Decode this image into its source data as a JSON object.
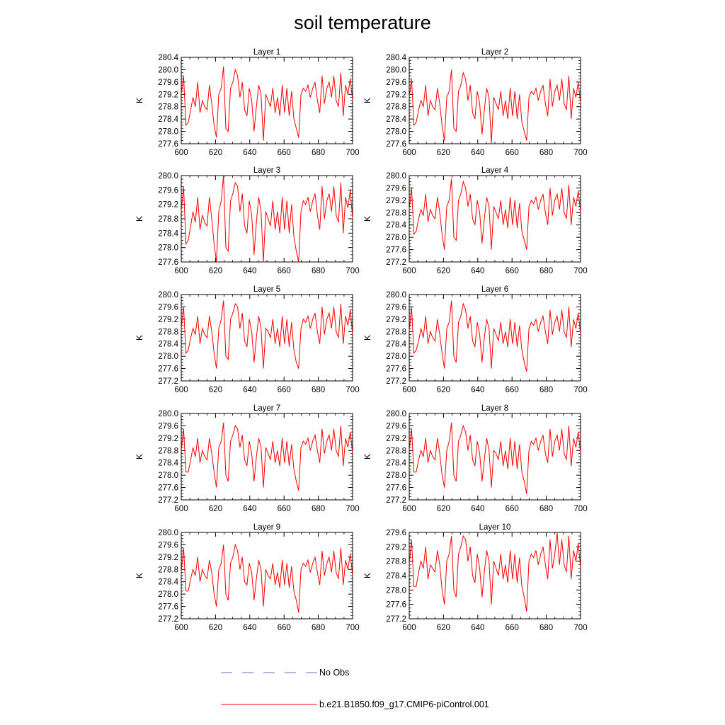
{
  "chart_data": {
    "type": "line",
    "title": "soil temperature",
    "xlim": [
      600,
      700
    ],
    "x_ticks": [
      "600",
      "620",
      "640",
      "660",
      "680",
      "700"
    ],
    "legend": [
      {
        "label": "No Obs",
        "color": "#6b6bbf",
        "style": "dashed"
      },
      {
        "label": "b.e21.B1850.f09_g17.CMIP6-piControl.001",
        "color": "#ff0000",
        "style": "solid"
      }
    ],
    "panels": [
      {
        "title": "Layer 1",
        "ylabel": "K",
        "ylim": [
          277.6,
          280.4
        ],
        "y_ticks": [
          "277.6",
          "278.0",
          "278.4",
          "278.8",
          "279.2",
          "279.6",
          "280.0",
          "280.4"
        ],
        "values": [
          279.2,
          279.8,
          278.2,
          278.3,
          278.7,
          279.1,
          278.8,
          279.6,
          278.6,
          279.0,
          278.8,
          278.7,
          279.5,
          278.9,
          278.2,
          277.8,
          279.2,
          279.4,
          280.1,
          278.1,
          278.0,
          279.4,
          279.6,
          280.0,
          279.8,
          279.1,
          279.6,
          278.7,
          278.5,
          279.4,
          279.0,
          278.0,
          278.8,
          279.5,
          279.2,
          277.7,
          279.2,
          279.0,
          278.8,
          279.4,
          278.6,
          279.1,
          278.5,
          279.5,
          278.6,
          279.4,
          278.5,
          279.3,
          278.4,
          278.1,
          277.8,
          279.2,
          279.4,
          279.3,
          279.5,
          279.1,
          279.4,
          279.6,
          279.0,
          278.6,
          279.8,
          278.9,
          279.4,
          279.6,
          279.1,
          279.8,
          279.0,
          278.8,
          279.9,
          278.5,
          279.5,
          279.2,
          279.7,
          279.0
        ],
        "x0": 600,
        "dx": 1.37
      },
      {
        "title": "Layer 2",
        "ylabel": "K",
        "ylim": [
          277.6,
          280.4
        ],
        "y_ticks": [
          "277.6",
          "278.0",
          "278.4",
          "278.8",
          "279.2",
          "279.6",
          "280.0",
          "280.4"
        ],
        "values": [
          279.1,
          279.7,
          278.2,
          278.3,
          278.7,
          279.0,
          278.8,
          279.5,
          278.5,
          279.0,
          278.8,
          278.7,
          279.4,
          278.9,
          278.2,
          277.7,
          279.1,
          279.3,
          280.0,
          278.1,
          278.0,
          279.3,
          279.5,
          279.9,
          279.7,
          279.0,
          279.5,
          278.6,
          278.4,
          279.3,
          278.9,
          277.9,
          278.7,
          279.4,
          279.1,
          277.6,
          279.1,
          278.9,
          278.7,
          279.3,
          278.5,
          279.0,
          278.4,
          279.4,
          278.5,
          279.3,
          278.4,
          279.2,
          278.3,
          278.0,
          277.7,
          279.1,
          279.3,
          279.2,
          279.4,
          279.0,
          279.3,
          279.5,
          278.9,
          278.5,
          279.7,
          278.8,
          279.3,
          279.5,
          279.0,
          279.7,
          278.9,
          278.7,
          279.8,
          278.4,
          279.4,
          279.1,
          279.6,
          278.9
        ],
        "x0": 600,
        "dx": 1.37
      },
      {
        "title": "Layer 3",
        "ylabel": "K",
        "ylim": [
          277.6,
          280.0
        ],
        "y_ticks": [
          "277.6",
          "278.0",
          "278.4",
          "278.8",
          "279.2",
          "279.6",
          "280.0"
        ],
        "values": [
          279.0,
          279.7,
          278.1,
          278.2,
          278.6,
          279.0,
          278.7,
          279.4,
          278.5,
          278.9,
          278.7,
          278.6,
          279.4,
          278.8,
          278.1,
          277.6,
          279.0,
          279.3,
          280.0,
          278.0,
          277.9,
          279.3,
          279.5,
          279.8,
          279.7,
          279.0,
          279.5,
          278.6,
          278.4,
          279.3,
          278.9,
          277.8,
          278.7,
          279.4,
          279.0,
          277.6,
          279.0,
          278.8,
          278.6,
          279.3,
          278.5,
          279.0,
          278.4,
          279.4,
          278.5,
          279.3,
          278.4,
          279.2,
          278.3,
          277.9,
          277.6,
          279.0,
          279.3,
          279.2,
          279.4,
          279.0,
          279.3,
          279.5,
          278.9,
          278.5,
          279.7,
          278.8,
          279.3,
          279.5,
          279.0,
          279.7,
          278.9,
          278.7,
          279.8,
          278.4,
          279.4,
          279.1,
          279.6,
          278.8
        ],
        "x0": 600,
        "dx": 1.37
      },
      {
        "title": "Layer 4",
        "ylabel": "K",
        "ylim": [
          277.2,
          280.0
        ],
        "y_ticks": [
          "277.2",
          "277.6",
          "278.0",
          "278.4",
          "278.8",
          "279.2",
          "279.6",
          "280.0"
        ],
        "values": [
          278.9,
          279.6,
          278.1,
          278.2,
          278.6,
          278.9,
          278.7,
          279.4,
          278.5,
          278.9,
          278.7,
          278.6,
          279.3,
          278.8,
          278.1,
          277.6,
          279.0,
          279.2,
          279.9,
          278.0,
          277.9,
          279.2,
          279.4,
          279.8,
          279.6,
          279.0,
          279.4,
          278.6,
          278.4,
          279.2,
          278.8,
          277.8,
          278.6,
          279.3,
          279.0,
          277.6,
          279.0,
          278.8,
          278.6,
          279.2,
          278.4,
          278.9,
          278.3,
          279.3,
          278.4,
          279.2,
          278.3,
          279.1,
          278.2,
          277.9,
          277.6,
          279.0,
          279.2,
          279.1,
          279.3,
          278.9,
          279.2,
          279.4,
          278.8,
          278.4,
          279.6,
          278.7,
          279.2,
          279.4,
          278.9,
          279.6,
          278.8,
          278.6,
          279.7,
          278.4,
          279.3,
          279.0,
          279.5,
          278.8
        ],
        "x0": 600,
        "dx": 1.37
      },
      {
        "title": "Layer 5",
        "ylabel": "K",
        "ylim": [
          277.2,
          280.0
        ],
        "y_ticks": [
          "277.2",
          "277.6",
          "278.0",
          "278.4",
          "278.8",
          "279.2",
          "279.6",
          "280.0"
        ],
        "values": [
          278.9,
          279.6,
          278.1,
          278.2,
          278.6,
          278.9,
          278.7,
          279.3,
          278.4,
          278.9,
          278.7,
          278.6,
          279.3,
          278.8,
          278.1,
          277.6,
          278.9,
          279.2,
          279.8,
          278.0,
          277.9,
          279.2,
          279.4,
          279.7,
          279.6,
          278.9,
          279.4,
          278.5,
          278.3,
          279.2,
          278.8,
          277.8,
          278.6,
          279.3,
          278.9,
          277.6,
          278.9,
          278.8,
          278.6,
          279.2,
          278.4,
          278.9,
          278.3,
          279.3,
          278.4,
          279.2,
          278.3,
          279.1,
          278.2,
          277.8,
          277.6,
          278.9,
          279.2,
          279.1,
          279.3,
          278.9,
          279.2,
          279.4,
          278.8,
          278.4,
          279.6,
          278.7,
          279.2,
          279.4,
          278.9,
          279.6,
          278.8,
          278.6,
          279.7,
          278.4,
          279.3,
          279.0,
          279.5,
          278.7
        ],
        "x0": 600,
        "dx": 1.37
      },
      {
        "title": "Layer 6",
        "ylabel": "K",
        "ylim": [
          277.2,
          280.0
        ],
        "y_ticks": [
          "277.2",
          "277.6",
          "278.0",
          "278.4",
          "278.8",
          "279.2",
          "279.6",
          "280.0"
        ],
        "values": [
          278.8,
          279.6,
          278.1,
          278.2,
          278.5,
          278.9,
          278.6,
          279.3,
          278.4,
          278.8,
          278.6,
          278.5,
          279.2,
          278.7,
          278.1,
          277.6,
          278.9,
          279.1,
          279.8,
          278.0,
          277.8,
          279.1,
          279.3,
          279.7,
          279.5,
          278.9,
          279.3,
          278.5,
          278.3,
          279.1,
          278.7,
          277.8,
          278.6,
          279.2,
          278.9,
          277.6,
          278.9,
          278.7,
          278.5,
          279.1,
          278.4,
          278.8,
          278.3,
          279.2,
          278.4,
          279.1,
          278.3,
          279.0,
          278.2,
          277.8,
          277.5,
          278.9,
          279.1,
          279.0,
          279.2,
          278.8,
          279.1,
          279.3,
          278.8,
          278.4,
          279.5,
          278.7,
          279.1,
          279.3,
          278.8,
          279.5,
          278.8,
          278.6,
          279.6,
          278.3,
          279.2,
          278.9,
          279.4,
          278.7
        ],
        "x0": 600,
        "dx": 1.37
      },
      {
        "title": "Layer 7",
        "ylabel": "K",
        "ylim": [
          277.2,
          280.0
        ],
        "y_ticks": [
          "277.2",
          "277.6",
          "278.0",
          "278.4",
          "278.8",
          "279.2",
          "279.6",
          "280.0"
        ],
        "values": [
          278.8,
          279.5,
          278.1,
          278.1,
          278.5,
          278.9,
          278.6,
          279.2,
          278.4,
          278.8,
          278.6,
          278.5,
          279.2,
          278.7,
          278.1,
          277.6,
          278.9,
          279.1,
          279.7,
          278.0,
          277.8,
          279.1,
          279.3,
          279.6,
          279.5,
          278.9,
          279.3,
          278.5,
          278.3,
          279.1,
          278.7,
          277.8,
          278.6,
          279.2,
          278.9,
          277.6,
          278.9,
          278.7,
          278.5,
          279.1,
          278.4,
          278.8,
          278.3,
          279.2,
          278.4,
          279.1,
          278.3,
          279.0,
          278.2,
          277.8,
          277.5,
          278.9,
          279.1,
          279.0,
          279.2,
          278.8,
          279.1,
          279.3,
          278.8,
          278.4,
          279.5,
          278.7,
          279.1,
          279.3,
          278.8,
          279.5,
          278.8,
          278.6,
          279.6,
          278.3,
          279.2,
          278.9,
          279.4,
          278.7
        ],
        "x0": 600,
        "dx": 1.37
      },
      {
        "title": "Layer 8",
        "ylabel": "K",
        "ylim": [
          277.2,
          280.0
        ],
        "y_ticks": [
          "277.2",
          "277.6",
          "278.0",
          "278.4",
          "278.8",
          "279.2",
          "279.6",
          "280.0"
        ],
        "values": [
          278.8,
          279.5,
          278.1,
          278.1,
          278.5,
          278.8,
          278.6,
          279.2,
          278.4,
          278.8,
          278.6,
          278.5,
          279.2,
          278.7,
          278.0,
          277.6,
          278.8,
          279.1,
          279.7,
          278.0,
          277.8,
          279.1,
          279.3,
          279.6,
          279.4,
          278.8,
          279.3,
          278.5,
          278.3,
          279.1,
          278.7,
          277.8,
          278.5,
          279.2,
          278.8,
          277.6,
          278.8,
          278.7,
          278.5,
          279.1,
          278.3,
          278.8,
          278.2,
          279.2,
          278.3,
          279.1,
          278.2,
          279.0,
          278.1,
          277.8,
          277.4,
          278.8,
          279.1,
          279.0,
          279.2,
          278.8,
          279.1,
          279.3,
          278.7,
          278.4,
          279.5,
          278.6,
          279.1,
          279.3,
          278.8,
          279.5,
          278.7,
          278.5,
          279.6,
          278.3,
          279.2,
          278.9,
          279.4,
          278.7
        ],
        "x0": 600,
        "dx": 1.37
      },
      {
        "title": "Layer 9",
        "ylabel": "K",
        "ylim": [
          277.2,
          280.0
        ],
        "y_ticks": [
          "277.2",
          "277.6",
          "278.0",
          "278.4",
          "278.8",
          "279.2",
          "279.6",
          "280.0"
        ],
        "values": [
          278.7,
          279.5,
          278.1,
          278.1,
          278.5,
          278.8,
          278.6,
          279.2,
          278.4,
          278.8,
          278.6,
          278.5,
          279.1,
          278.7,
          278.0,
          277.6,
          278.8,
          279.0,
          279.6,
          278.0,
          277.8,
          279.0,
          279.2,
          279.6,
          279.4,
          278.8,
          279.2,
          278.4,
          278.3,
          279.0,
          278.7,
          277.8,
          278.5,
          279.1,
          278.8,
          277.6,
          278.8,
          278.6,
          278.5,
          279.0,
          278.3,
          278.7,
          278.2,
          279.1,
          278.3,
          279.0,
          278.2,
          278.9,
          278.1,
          277.8,
          277.4,
          278.8,
          279.0,
          278.9,
          279.1,
          278.7,
          279.0,
          279.2,
          278.7,
          278.3,
          279.4,
          278.6,
          279.0,
          279.2,
          278.7,
          279.4,
          278.7,
          278.5,
          279.5,
          278.3,
          279.1,
          278.8,
          279.3,
          278.6
        ],
        "x0": 600,
        "dx": 1.37
      },
      {
        "title": "Layer 10",
        "ylabel": "K",
        "ylim": [
          277.2,
          279.6
        ],
        "y_ticks": [
          "277.2",
          "277.6",
          "278.0",
          "278.4",
          "278.8",
          "279.2",
          "279.6"
        ],
        "values": [
          278.7,
          279.4,
          278.1,
          278.1,
          278.5,
          278.8,
          278.6,
          279.2,
          278.3,
          278.7,
          278.6,
          278.5,
          279.1,
          278.7,
          278.0,
          277.6,
          278.8,
          279.0,
          279.5,
          278.0,
          277.8,
          279.0,
          279.2,
          279.5,
          279.4,
          278.8,
          279.2,
          278.4,
          278.2,
          279.0,
          278.6,
          277.8,
          278.5,
          279.1,
          278.8,
          277.6,
          278.8,
          278.6,
          278.4,
          279.0,
          278.3,
          278.7,
          278.2,
          279.1,
          278.3,
          279.0,
          278.2,
          278.9,
          278.1,
          277.8,
          277.4,
          278.8,
          279.0,
          278.9,
          279.1,
          278.7,
          279.0,
          279.2,
          278.7,
          278.3,
          279.4,
          278.6,
          279.0,
          279.6,
          278.7,
          279.4,
          278.7,
          278.5,
          279.5,
          278.3,
          279.1,
          278.8,
          279.3,
          278.6
        ],
        "x0": 600,
        "dx": 1.37
      }
    ]
  }
}
